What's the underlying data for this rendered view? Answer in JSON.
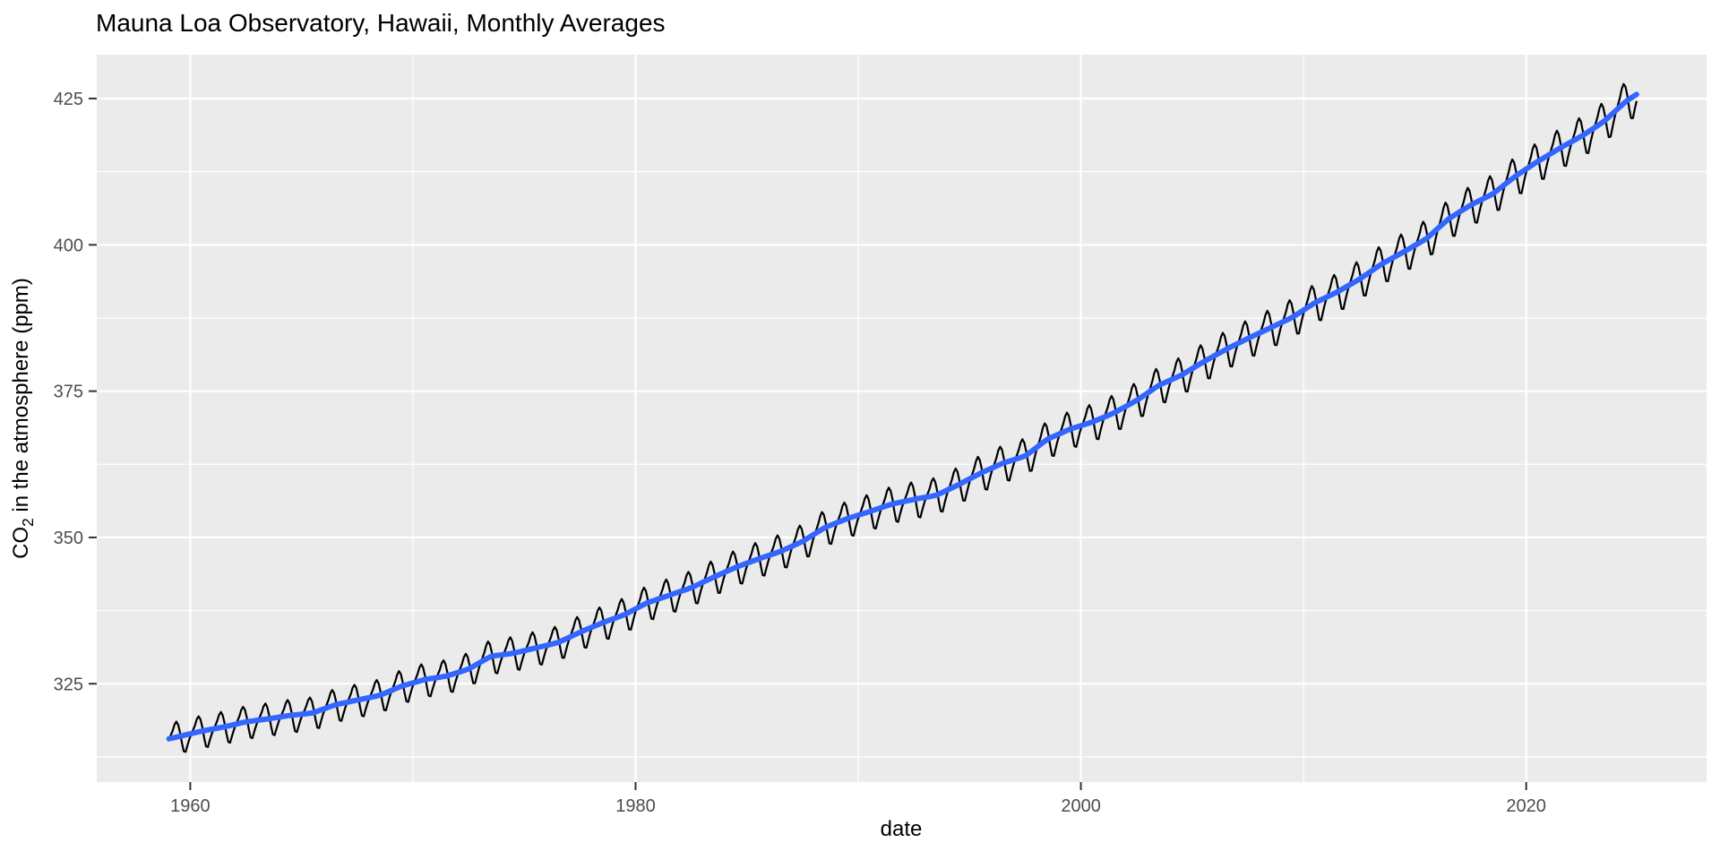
{
  "chart": {
    "title": "Mauna Loa Observatory, Hawaii, Monthly Averages",
    "x_label": "date",
    "y_label_pre": "CO",
    "y_label_sub": "2",
    "y_label_post": " in the atmosphere (ppm)",
    "panel_color": "#EBEBEB",
    "grid_color": "#FFFFFF",
    "tick_label_color": "#4D4D4D",
    "tick_mark_color": "#333333",
    "data_line_color": "#000000",
    "smooth_line_color": "#3366FF",
    "background_color": "#FFFFFF"
  },
  "chart_data": {
    "type": "line",
    "title": "Mauna Loa Observatory, Hawaii, Monthly Averages",
    "xlabel": "date",
    "ylabel": "CO2 in the atmosphere (ppm)",
    "xlim": [
      1955.8,
      2028.1
    ],
    "ylim": [
      308.2,
      432.5
    ],
    "x_major_ticks": [
      1960,
      1980,
      2000,
      2020
    ],
    "x_minor_gridlines": [
      1970,
      1990,
      2010
    ],
    "y_major_ticks": [
      325,
      350,
      375,
      400,
      425
    ],
    "y_minor_gridlines": [
      312.5,
      337.5,
      362.5,
      387.5,
      412.5
    ],
    "grid": true,
    "legend": false,
    "series": [
      {
        "name": "monthly_co2_observed",
        "type": "line",
        "color": "#000000",
        "start_year_month": "1959-01",
        "end_year_month": "2024-12",
        "trend_start_year": 1959,
        "trend_ppm": [
          316.0,
          316.9,
          317.6,
          318.5,
          319.0,
          319.6,
          320.0,
          321.4,
          322.2,
          323.0,
          324.6,
          325.7,
          326.3,
          327.5,
          329.7,
          330.2,
          331.1,
          332.0,
          333.8,
          335.4,
          336.8,
          338.8,
          340.1,
          341.4,
          343.2,
          344.9,
          346.3,
          347.6,
          349.3,
          351.7,
          353.2,
          354.4,
          355.7,
          356.5,
          357.2,
          359.0,
          361.0,
          362.7,
          363.9,
          366.8,
          368.5,
          369.7,
          371.3,
          373.4,
          376.0,
          377.7,
          380.0,
          382.1,
          384.0,
          385.8,
          387.6,
          390.1,
          391.9,
          394.1,
          396.7,
          398.8,
          401.0,
          404.4,
          406.8,
          408.7,
          411.7,
          414.2,
          416.5,
          418.6,
          421.1,
          424.6,
          427.0
        ],
        "seasonal_offsets_ppm": [
          -0.1,
          0.6,
          1.4,
          2.5,
          3.0,
          2.3,
          0.7,
          -1.4,
          -3.1,
          -3.3,
          -2.1,
          -1.0
        ],
        "seasonal_amp_base": 0.88,
        "seasonal_amp_growth_per_year": 0.0035
      },
      {
        "name": "smooth_trend",
        "type": "line",
        "color": "#3366FF",
        "description": "loess smooth through monthly values; follows trend_ppm of series 0"
      }
    ]
  }
}
